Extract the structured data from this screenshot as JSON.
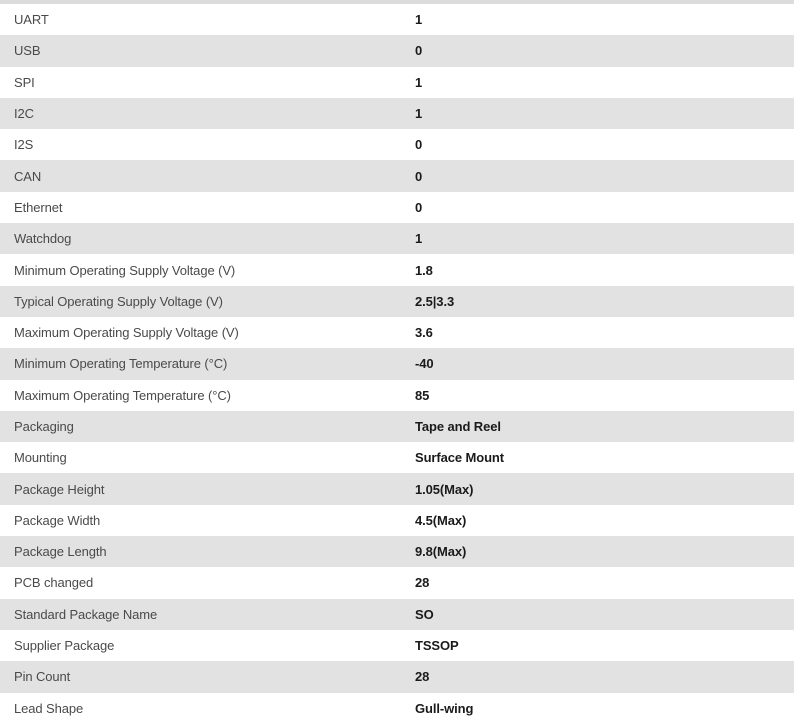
{
  "table": {
    "rows": [
      {
        "label": "UART",
        "value": "1"
      },
      {
        "label": "USB",
        "value": "0"
      },
      {
        "label": "SPI",
        "value": "1"
      },
      {
        "label": "I2C",
        "value": "1"
      },
      {
        "label": "I2S",
        "value": "0"
      },
      {
        "label": "CAN",
        "value": "0"
      },
      {
        "label": "Ethernet",
        "value": "0"
      },
      {
        "label": "Watchdog",
        "value": "1"
      },
      {
        "label": "Minimum Operating Supply Voltage (V)",
        "value": "1.8"
      },
      {
        "label": "Typical Operating Supply Voltage (V)",
        "value": "2.5|3.3"
      },
      {
        "label": "Maximum Operating Supply Voltage (V)",
        "value": "3.6"
      },
      {
        "label": "Minimum Operating Temperature (°C)",
        "value": "-40"
      },
      {
        "label": "Maximum Operating Temperature (°C)",
        "value": "85"
      },
      {
        "label": "Packaging",
        "value": "Tape and Reel"
      },
      {
        "label": "Mounting",
        "value": "Surface Mount"
      },
      {
        "label": "Package Height",
        "value": "1.05(Max)"
      },
      {
        "label": "Package Width",
        "value": "4.5(Max)"
      },
      {
        "label": "Package Length",
        "value": "9.8(Max)"
      },
      {
        "label": "PCB changed",
        "value": "28"
      },
      {
        "label": "Standard Package Name",
        "value": "SO"
      },
      {
        "label": "Supplier Package",
        "value": "TSSOP"
      },
      {
        "label": "Pin Count",
        "value": "28"
      },
      {
        "label": "Lead Shape",
        "value": "Gull-wing"
      }
    ],
    "colors": {
      "row_white": "#ffffff",
      "row_gray": "#e2e2e2",
      "top_strip": "#dcdcdc",
      "label_text": "#4a4a4a",
      "value_text": "#1a1a1a"
    }
  }
}
